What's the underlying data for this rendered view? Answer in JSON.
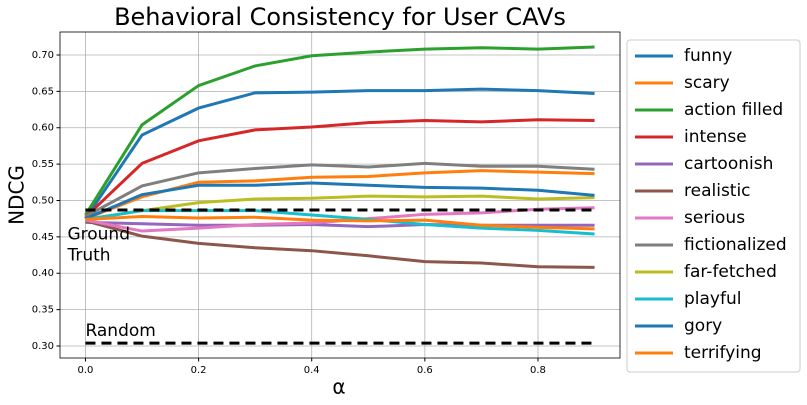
{
  "chart_data": {
    "type": "line",
    "title": "Behavioral Consistency for User CAVs",
    "x_label": "α",
    "y_label": "NDCG",
    "x": [
      0,
      0.1,
      0.2,
      0.3,
      0.4,
      0.5,
      0.6,
      0.7,
      0.8,
      0.9
    ],
    "series": [
      {
        "name": "funny",
        "color": "#1f77b4",
        "values": [
          0.475,
          0.59,
          0.627,
          0.648,
          0.649,
          0.651,
          0.651,
          0.653,
          0.651,
          0.647
        ]
      },
      {
        "name": "scary",
        "color": "#ff7f0e",
        "values": [
          0.475,
          0.505,
          0.525,
          0.527,
          0.532,
          0.533,
          0.538,
          0.541,
          0.539,
          0.537
        ]
      },
      {
        "name": "action filled",
        "color": "#2ca02c",
        "values": [
          0.48,
          0.604,
          0.658,
          0.685,
          0.699,
          0.704,
          0.708,
          0.71,
          0.708,
          0.711
        ]
      },
      {
        "name": "intense",
        "color": "#d62728",
        "values": [
          0.477,
          0.551,
          0.582,
          0.597,
          0.601,
          0.607,
          0.61,
          0.608,
          0.611,
          0.61
        ]
      },
      {
        "name": "cartoonish",
        "color": "#9467bd",
        "values": [
          0.47,
          0.468,
          0.466,
          0.466,
          0.467,
          0.464,
          0.467,
          0.466,
          0.466,
          0.466
        ]
      },
      {
        "name": "realistic",
        "color": "#8c564b",
        "values": [
          0.472,
          0.451,
          0.441,
          0.435,
          0.431,
          0.424,
          0.416,
          0.414,
          0.409,
          0.408
        ]
      },
      {
        "name": "serious",
        "color": "#e377c2",
        "values": [
          0.473,
          0.458,
          0.462,
          0.467,
          0.469,
          0.475,
          0.481,
          0.483,
          0.488,
          0.49
        ]
      },
      {
        "name": "fictionalized",
        "color": "#7f7f7f",
        "values": [
          0.478,
          0.52,
          0.538,
          0.544,
          0.549,
          0.546,
          0.551,
          0.547,
          0.547,
          0.543
        ]
      },
      {
        "name": "far-fetched",
        "color": "#bcbd22",
        "values": [
          0.474,
          0.486,
          0.497,
          0.502,
          0.503,
          0.506,
          0.505,
          0.506,
          0.502,
          0.504
        ]
      },
      {
        "name": "playful",
        "color": "#17becf",
        "values": [
          0.474,
          0.486,
          0.486,
          0.486,
          0.48,
          0.474,
          0.467,
          0.462,
          0.459,
          0.454
        ]
      },
      {
        "name": "gory",
        "color": "#1f77b4",
        "values": [
          0.475,
          0.508,
          0.521,
          0.521,
          0.524,
          0.521,
          0.518,
          0.517,
          0.514,
          0.507
        ]
      },
      {
        "name": "terrifying",
        "color": "#ff7f0e",
        "values": [
          0.474,
          0.478,
          0.476,
          0.477,
          0.473,
          0.472,
          0.473,
          0.466,
          0.463,
          0.461
        ]
      }
    ],
    "hlines": [
      {
        "value": 0.487,
        "color": "#000000",
        "label": [
          "Ground",
          "Truth"
        ]
      },
      {
        "value": 0.304,
        "color": "#000000",
        "label": [
          "Random"
        ]
      }
    ],
    "xlim": [
      -0.045,
      0.945
    ],
    "ylim": [
      0.2835,
      0.7316
    ],
    "xticks": [
      {
        "value": 0,
        "label": "0.0"
      },
      0.2,
      0.4,
      0.6,
      0.8
    ],
    "yticks": [
      {
        "value": 0.3,
        "label": "0.30"
      },
      0.35,
      {
        "value": 0.4,
        "label": "0.40"
      },
      0.45,
      {
        "value": 0.5,
        "label": "0.50"
      },
      0.55,
      {
        "value": 0.6,
        "label": "0.60"
      },
      0.65,
      {
        "value": 0.7,
        "label": "0.70"
      }
    ],
    "grid": true,
    "legend": "outside-right"
  }
}
